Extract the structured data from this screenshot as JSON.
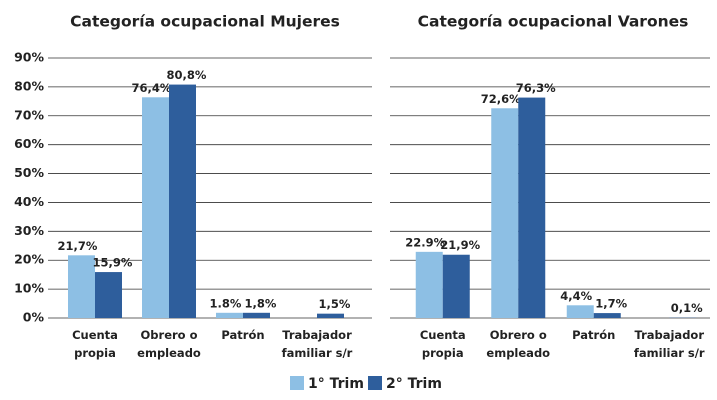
{
  "chart_data": [
    {
      "type": "bar",
      "title": "Categoría ocupacional Mujeres",
      "categories": [
        "Cuenta propia",
        "Obrero o empleado",
        "Patrón",
        "Trabajador familiar s/r"
      ],
      "series": [
        {
          "name": "1° Trim",
          "color": "#8dbfe4",
          "values": [
            21.7,
            76.4,
            1.8,
            null
          ],
          "value_labels": [
            "21,7%",
            "76,4%",
            "1.8%",
            null
          ]
        },
        {
          "name": "2° Trim",
          "color": "#2e5e9c",
          "values": [
            15.9,
            80.8,
            1.8,
            1.5
          ],
          "value_labels": [
            "15,9%",
            "80,8%",
            "1,8%",
            "1,5%"
          ]
        }
      ],
      "ylim": [
        0,
        90
      ],
      "yticks": [
        {
          "value": 0,
          "label": "0%"
        },
        {
          "value": 10,
          "label": "10%"
        },
        {
          "value": 20,
          "label": "20%"
        },
        {
          "value": 30,
          "label": "30%"
        },
        {
          "value": 40,
          "label": "40%"
        },
        {
          "value": 50,
          "label": "50%"
        },
        {
          "value": 60,
          "label": "60%"
        },
        {
          "value": 70,
          "label": "70%"
        },
        {
          "value": 80,
          "label": "80%"
        },
        {
          "value": 90,
          "label": "90%"
        }
      ],
      "grid": true,
      "legend": "bottom"
    },
    {
      "type": "bar",
      "title": "Categoría ocupacional Varones",
      "categories": [
        "Cuenta propia",
        "Obrero o empleado",
        "Patrón",
        "Trabajador familiar s/r"
      ],
      "series": [
        {
          "name": "1° Trim",
          "color": "#8dbfe4",
          "values": [
            22.9,
            72.6,
            4.4,
            null
          ],
          "value_labels": [
            "22.9%",
            "72,6%",
            "4,4%",
            null
          ]
        },
        {
          "name": "2° Trim",
          "color": "#2e5e9c",
          "values": [
            21.9,
            76.3,
            1.7,
            0.1
          ],
          "value_labels": [
            "21,9%",
            "76,3%",
            "1,7%",
            "0,1%"
          ]
        }
      ],
      "ylim": [
        0,
        90
      ],
      "yticks": [
        0,
        10,
        20,
        30,
        40,
        50,
        60,
        70,
        80,
        90
      ],
      "grid": true
    }
  ]
}
